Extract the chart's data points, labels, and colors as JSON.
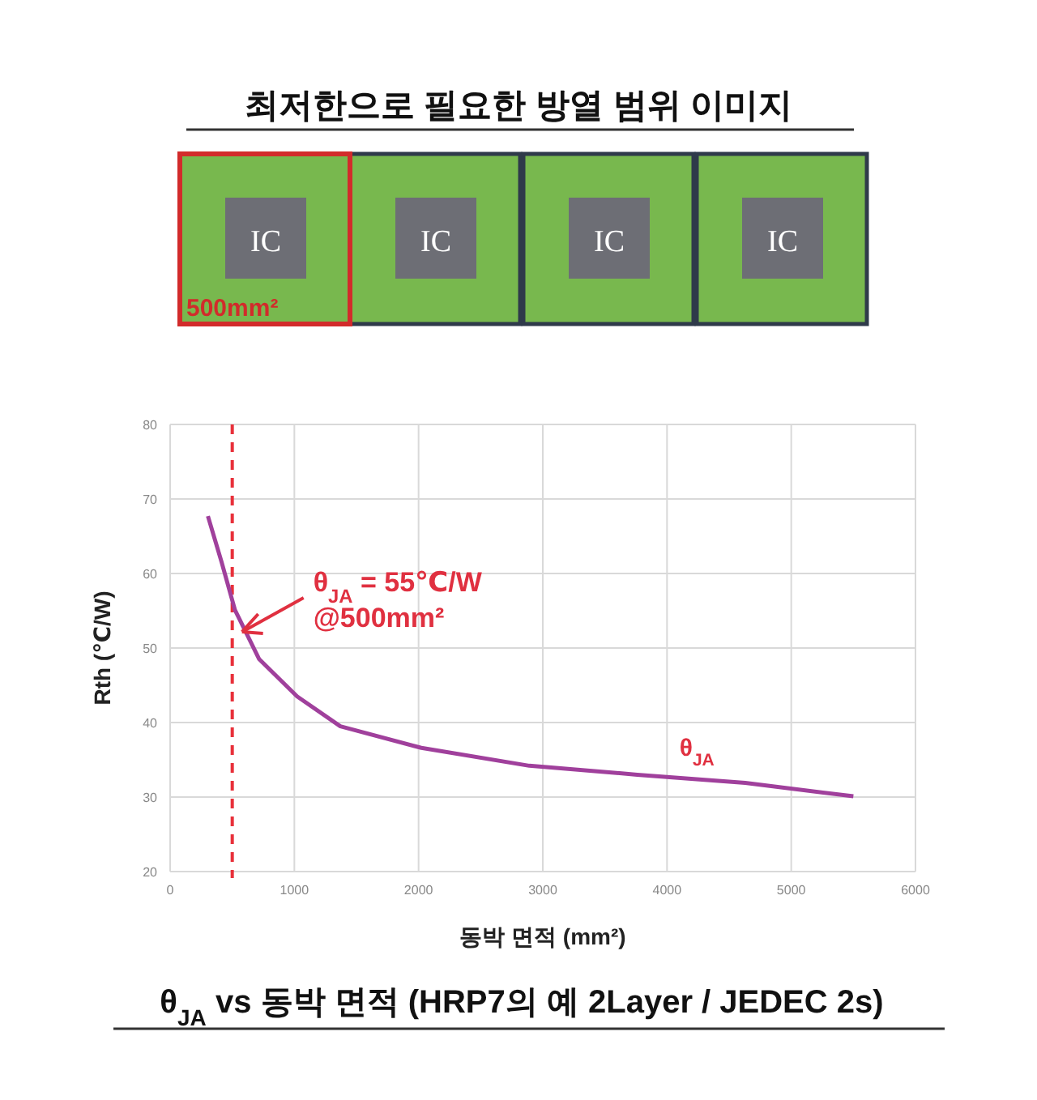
{
  "chart_data": {
    "type": "line",
    "title": "θ$_{JA}$ vs 동박 면적 (HRP7의 예 2Layer / JEDEC 2s)",
    "xlabel": "동박 면적 (mm²)",
    "ylabel": "Rth (℃/W)",
    "x": [
      304,
      413,
      522,
      717,
      1022,
      1370,
      2022,
      2891,
      3761,
      4630,
      5500
    ],
    "series": [
      {
        "name": "θ$_{JA}$",
        "color": "#a0409c",
        "values": [
          67.7,
          61.6,
          55.1,
          48.5,
          43.5,
          39.5,
          36.6,
          34.2,
          33.0,
          31.9,
          30.1
        ]
      }
    ],
    "xlim": [
      0,
      6000
    ],
    "xticks": [
      0,
      1000,
      2000,
      3000,
      4000,
      5000,
      6000
    ],
    "ylim": [
      20,
      80
    ],
    "yticks": [
      20,
      30,
      40,
      50,
      60,
      70,
      80
    ],
    "grid": true,
    "marker": "none",
    "line_style": "solid",
    "ref_lines": [
      {
        "axis": "x",
        "value": 500,
        "color": "#e8303a",
        "line_style": "dashed"
      }
    ],
    "annotations": [
      "최저한으로 필요한 방열 범위 이미지",
      "IC",
      "IC",
      "IC",
      "IC",
      "500mm²",
      {
        "text": "θ$_{JA}$ = 55℃/W\n@500mm²",
        "x": 500,
        "y": 55
      }
    ]
  }
}
